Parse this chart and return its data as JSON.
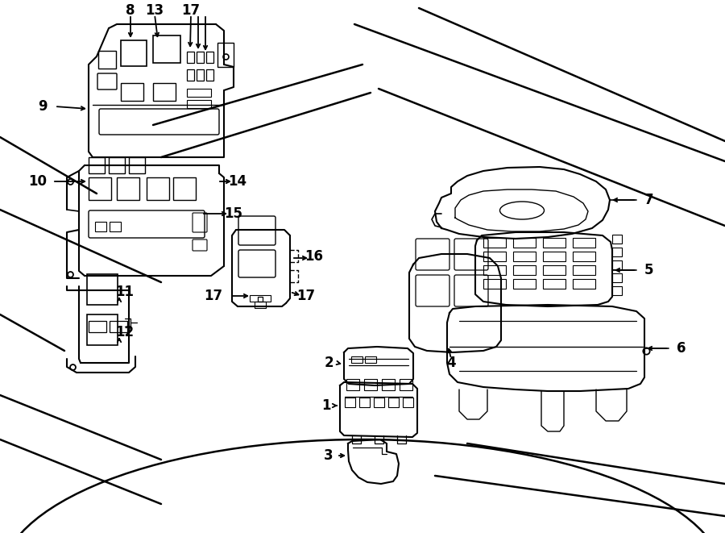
{
  "bg_color": "#ffffff",
  "line_color": "#000000",
  "lw": 1.3,
  "figsize": [
    9.0,
    6.61
  ],
  "dpi": 100
}
